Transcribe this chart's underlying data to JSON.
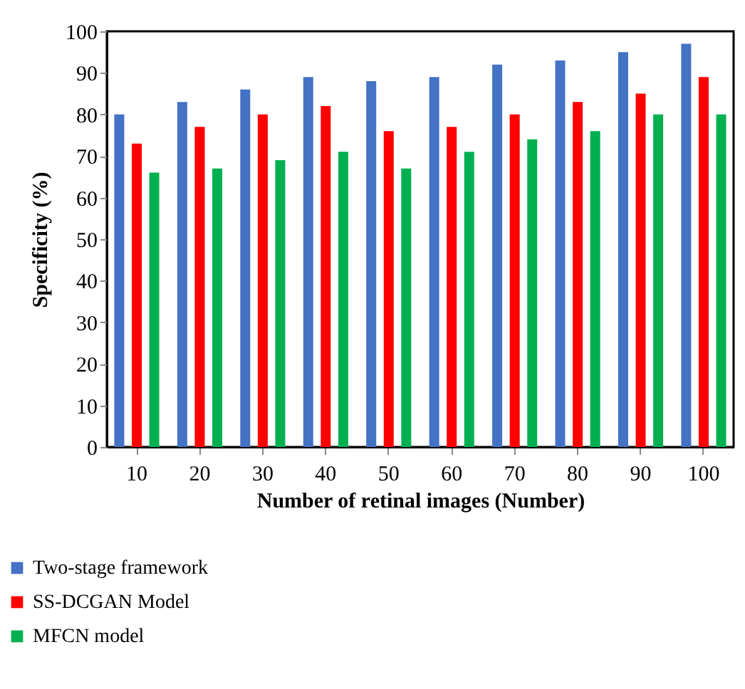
{
  "chart_data": {
    "type": "bar",
    "xlabel": "Number of retinal images (Number)",
    "ylabel": "Specificity (%)",
    "categories": [
      "10",
      "20",
      "30",
      "40",
      "50",
      "60",
      "70",
      "80",
      "90",
      "100"
    ],
    "series": [
      {
        "name": "Two-stage framework",
        "color": "#4472c4",
        "values": [
          80,
          83,
          86,
          89,
          88,
          89,
          92,
          93,
          95,
          97
        ]
      },
      {
        "name": "SS-DCGAN Model",
        "color": "#ff0000",
        "values": [
          73,
          77,
          80,
          82,
          76,
          77,
          80,
          83,
          85,
          89
        ]
      },
      {
        "name": "MFCN model",
        "color": "#00b050",
        "values": [
          66,
          67,
          69,
          71,
          67,
          71,
          74,
          76,
          80,
          80
        ]
      }
    ],
    "ylim": [
      0,
      100
    ],
    "yticks": [
      0,
      10,
      20,
      30,
      40,
      50,
      60,
      70,
      80,
      90,
      100
    ],
    "grid": false,
    "legend": "bottom"
  }
}
